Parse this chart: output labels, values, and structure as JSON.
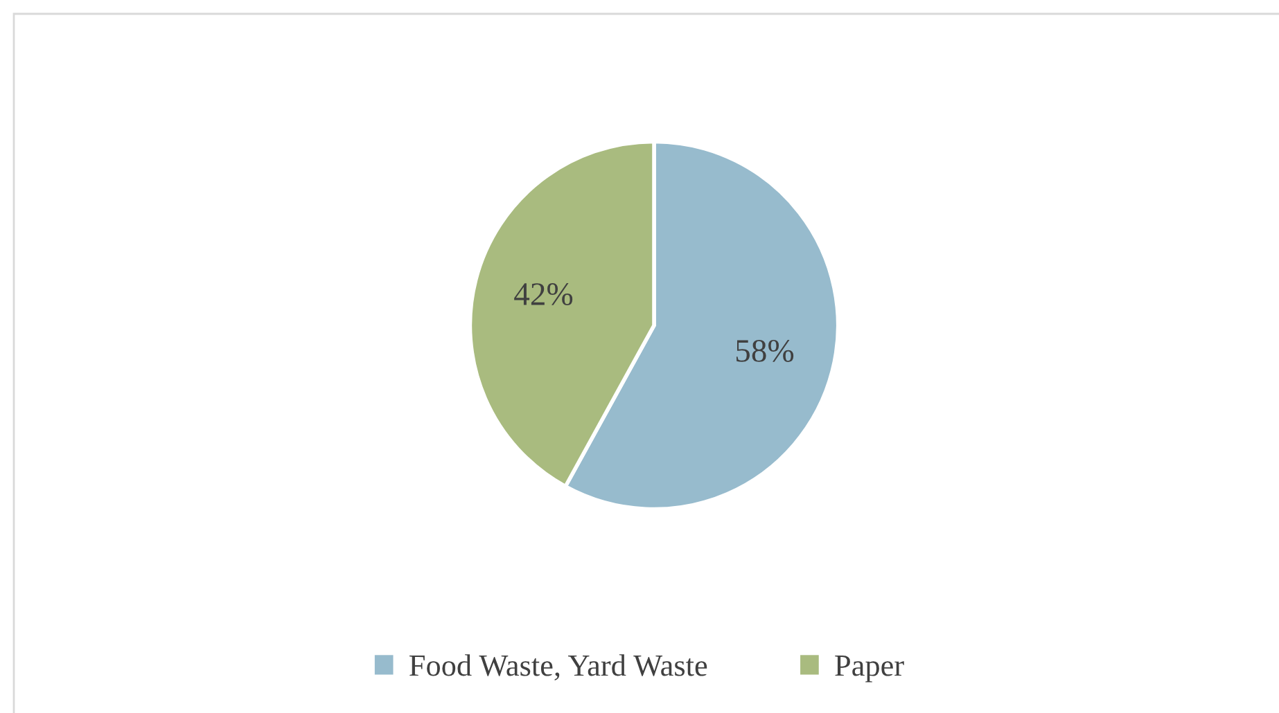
{
  "chart_data": {
    "type": "pie",
    "categories": [
      "Food Waste, Yard Waste",
      "Paper"
    ],
    "values": [
      58,
      42
    ],
    "colors": [
      "#97bbcd",
      "#a9bb7f"
    ],
    "value_labels": [
      "58%",
      "42%"
    ],
    "legend": "bottom"
  }
}
